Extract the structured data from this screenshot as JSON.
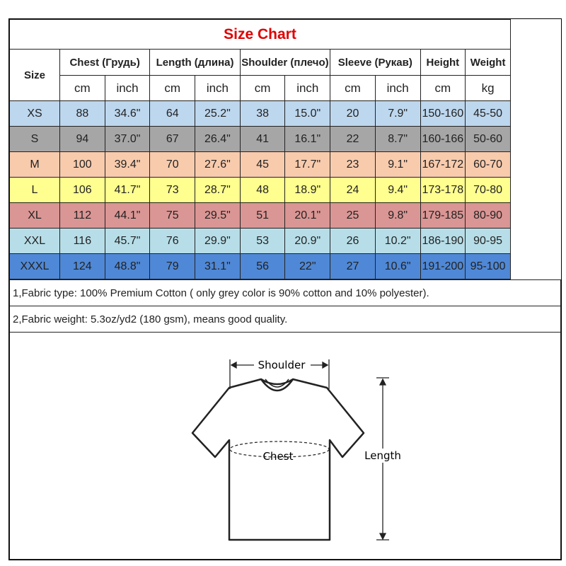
{
  "title": "Size Chart",
  "headers": {
    "size": "Size",
    "groups": [
      "Chest  (Грудь)",
      "Length (длина)",
      "Shoulder (плечо)",
      "Sleeve (Рукав)",
      "Height",
      "Weight"
    ],
    "units": [
      "cm",
      "inch",
      "cm",
      "inch",
      "cm",
      "inch",
      "cm",
      "inch",
      "cm",
      "kg"
    ]
  },
  "rows": [
    {
      "size": "XS",
      "values": [
        "88",
        "34.6\"",
        "64",
        "25.2\"",
        "38",
        "15.0\"",
        "20",
        "7.9\"",
        "150-160",
        "45-50"
      ],
      "color": "#bdd7ee"
    },
    {
      "size": "S",
      "values": [
        "94",
        "37.0\"",
        "67",
        "26.4\"",
        "41",
        "16.1\"",
        "22",
        "8.7\"",
        "160-166",
        "50-60"
      ],
      "color": "#a6a6a6"
    },
    {
      "size": "M",
      "values": [
        "100",
        "39.4\"",
        "70",
        "27.6\"",
        "45",
        "17.7\"",
        "23",
        "9.1\"",
        "167-172",
        "60-70"
      ],
      "color": "#f8cbad"
    },
    {
      "size": "L",
      "values": [
        "106",
        "41.7\"",
        "73",
        "28.7\"",
        "48",
        "18.9\"",
        "24",
        "9.4\"",
        "173-178",
        "70-80"
      ],
      "color": "#ffff8f"
    },
    {
      "size": "XL",
      "values": [
        "112",
        "44.1\"",
        "75",
        "29.5\"",
        "51",
        "20.1\"",
        "25",
        "9.8\"",
        "179-185",
        "80-90"
      ],
      "color": "#da9694"
    },
    {
      "size": "XXL",
      "values": [
        "116",
        "45.7\"",
        "76",
        "29.9\"",
        "53",
        "20.9\"",
        "26",
        "10.2\"",
        "186-190",
        "90-95"
      ],
      "color": "#b7dee8"
    },
    {
      "size": "XXXL",
      "values": [
        "124",
        "48.8\"",
        "79",
        "31.1\"",
        "56",
        "22\"",
        "27",
        "10.6\"",
        "191-200",
        "95-100"
      ],
      "color": "#4f88d6"
    }
  ],
  "notes": [
    "1,Fabric type: 100% Premium Cotton ( only grey color is 90% cotton and 10% polyester).",
    "2,Fabric weight: 5.3oz/yd2 (180 gsm), means good quality."
  ],
  "diagram": {
    "shoulder": "Shoulder",
    "chest": "Chest",
    "length": "Length"
  }
}
